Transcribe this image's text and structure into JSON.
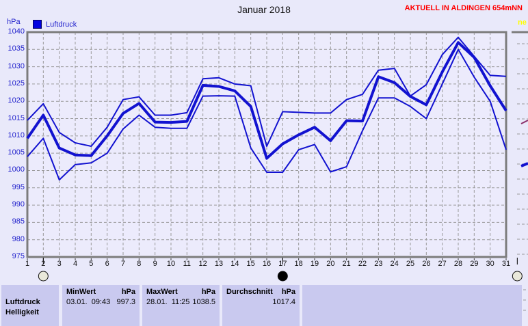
{
  "header": {
    "title": "Januar 2018",
    "station": "AKTUELL IN ALDINGEN 654mNN"
  },
  "next_panel": {
    "label": "ne"
  },
  "legend": {
    "label": "Luftdruck",
    "color": "#0000e0"
  },
  "chart_data": {
    "type": "line",
    "title": "Januar 2018",
    "ylabel": "hPa",
    "xlabel": "",
    "ylim": [
      975,
      1040
    ],
    "grid": true,
    "legend_position": "top-left",
    "y_ticks": [
      1040,
      1035,
      1030,
      1025,
      1020,
      1015,
      1010,
      1005,
      1000,
      995,
      990,
      985,
      980,
      975
    ],
    "x": [
      1,
      2,
      3,
      4,
      5,
      6,
      7,
      8,
      9,
      10,
      11,
      12,
      13,
      14,
      15,
      16,
      17,
      18,
      19,
      20,
      21,
      22,
      23,
      24,
      25,
      26,
      27,
      28,
      29,
      30,
      31
    ],
    "series": [
      {
        "name": "max",
        "values": [
          1014.5,
          1019.3,
          1011.0,
          1008.0,
          1007.0,
          1012.5,
          1020.5,
          1021.3,
          1016.0,
          1016.0,
          1016.7,
          1026.5,
          1026.8,
          1025.0,
          1024.5,
          1007.0,
          1017.0,
          1016.8,
          1016.6,
          1016.6,
          1020.5,
          1022.0,
          1029.0,
          1029.5,
          1021.5,
          1024.8,
          1033.5,
          1038.5,
          1033.0,
          1027.5,
          1027.2
        ]
      },
      {
        "name": "mean",
        "values": [
          1009.3,
          1016.0,
          1006.5,
          1004.5,
          1004.3,
          1010.0,
          1016.5,
          1019.4,
          1014.0,
          1013.9,
          1014.2,
          1024.6,
          1024.3,
          1023.0,
          1018.5,
          1003.5,
          1007.7,
          1010.3,
          1012.5,
          1008.6,
          1014.4,
          1014.3,
          1027.1,
          1025.4,
          1021.4,
          1019.0,
          1028.5,
          1037.0,
          1032.7,
          1024.5,
          1017.3
        ]
      },
      {
        "name": "min",
        "values": [
          1004.0,
          1009.3,
          997.3,
          1001.7,
          1002.2,
          1005.0,
          1012.0,
          1016.0,
          1012.5,
          1012.2,
          1012.2,
          1021.5,
          1021.6,
          1021.5,
          1006.5,
          999.5,
          999.5,
          1006.0,
          1007.5,
          999.6,
          1001.1,
          1011.5,
          1021.0,
          1021.0,
          1018.5,
          1015.0,
          1025.0,
          1035.0,
          1027.0,
          1020.0,
          1006.0
        ]
      }
    ]
  },
  "moon_markers": [
    {
      "day": 2,
      "phase": "full"
    },
    {
      "day": 17,
      "phase": "new"
    },
    {
      "day": 31.7,
      "phase": "full"
    }
  ],
  "summary_table": {
    "sensor": {
      "name": "Luftdruck",
      "next_name": "Helligkeit"
    },
    "min": {
      "label": "MinWert",
      "unit": "hPa",
      "datetime": "03.01.  09:43",
      "value": "997.3"
    },
    "max": {
      "label": "MaxWert",
      "unit": "hPa",
      "datetime": "28.01.  11:25",
      "value": "1038.5"
    },
    "avg": {
      "label": "Durchschnitt",
      "unit": "hPa",
      "value": "1017.4"
    }
  },
  "colors": {
    "line_blue": "#1212d0",
    "banner_red": "#ff0000",
    "panel_title_yellow": "#ffff00",
    "grid_gray": "#999999",
    "frame_gray": "#7c7c7c",
    "table_bg": "#c9c9ef",
    "page_bg": "#e9e9fa"
  }
}
